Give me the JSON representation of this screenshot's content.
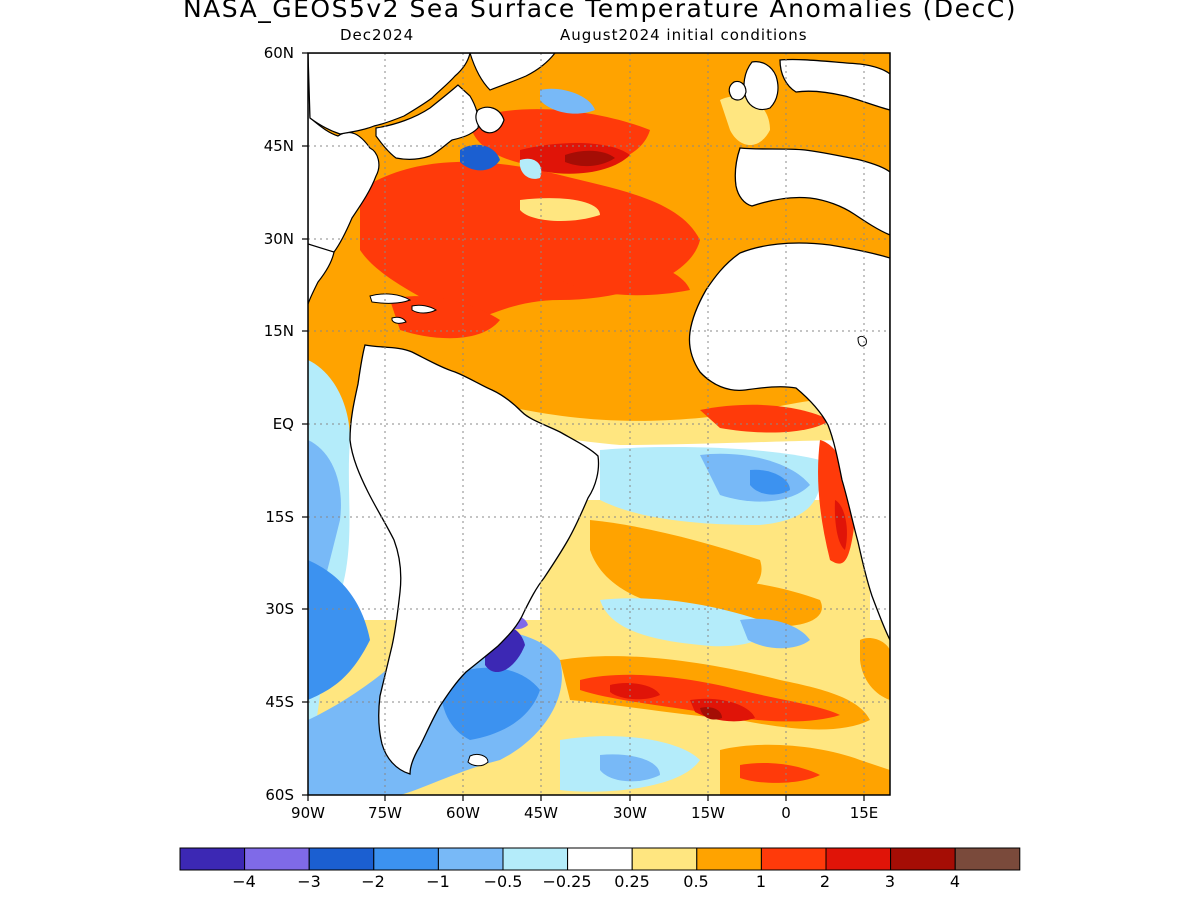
{
  "title": "NASA_GEOS5v2 Sea Surface Temperature Anomalies (DecC)",
  "subtitle_left": "Dec2024",
  "subtitle_right": "August2024 initial conditions",
  "lat_labels": [
    "60N",
    "45N",
    "30N",
    "15N",
    "EQ",
    "15S",
    "30S",
    "45S",
    "60S"
  ],
  "lon_labels": [
    "90W",
    "75W",
    "60W",
    "45W",
    "30W",
    "15W",
    "0",
    "15E"
  ],
  "colorbar": {
    "colors": [
      "#3c28b4",
      "#7f6ae8",
      "#1b5fd1",
      "#3c92f0",
      "#78b9f7",
      "#b4ecfa",
      "#ffffff",
      "#ffe680",
      "#ffa300",
      "#ff3a0a",
      "#e01408",
      "#a50d05",
      "#7a4a3b"
    ],
    "labels": [
      "−4",
      "−3",
      "−2",
      "−1",
      "−0.5",
      "−0.25",
      "0.25",
      "0.5",
      "1",
      "2",
      "3",
      "4"
    ]
  }
}
